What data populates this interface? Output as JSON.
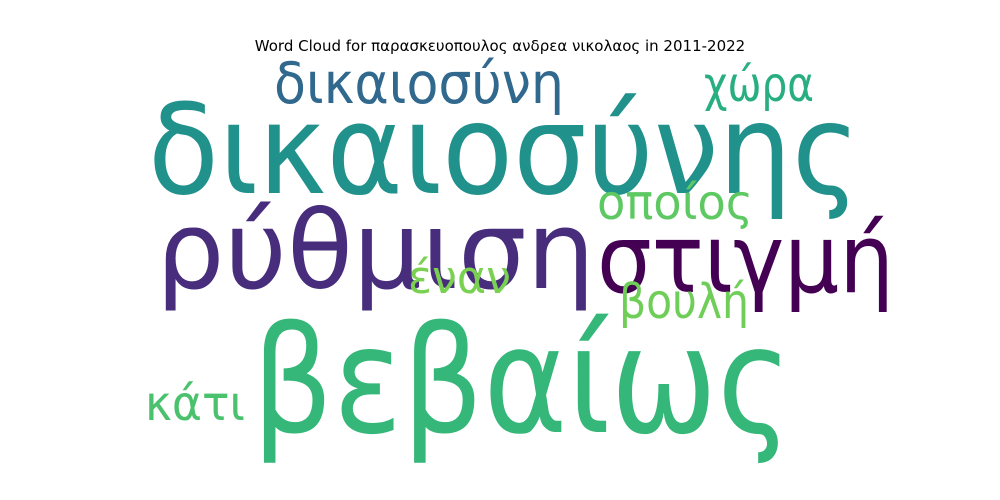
{
  "chart_data": {
    "type": "word_cloud",
    "title": "Word Cloud for παρασκευοπουλος ανδρεα νικολαος in 2011-2022",
    "words": [
      {
        "text": "δικαιοσύνης",
        "color": "#21918c"
      },
      {
        "text": "ρύθμιση",
        "color": "#472d7b"
      },
      {
        "text": "βεβαίως",
        "color": "#35b779"
      },
      {
        "text": "στιγμή",
        "color": "#440154"
      },
      {
        "text": "δικαιοσύνη",
        "color": "#31688e"
      },
      {
        "text": "χώρα",
        "color": "#28ae80"
      },
      {
        "text": "οποίος",
        "color": "#5ec962"
      },
      {
        "text": "βουλή",
        "color": "#6ece58"
      },
      {
        "text": "έναν",
        "color": "#7ad151"
      },
      {
        "text": "κάτι",
        "color": "#4ac16d"
      }
    ]
  }
}
